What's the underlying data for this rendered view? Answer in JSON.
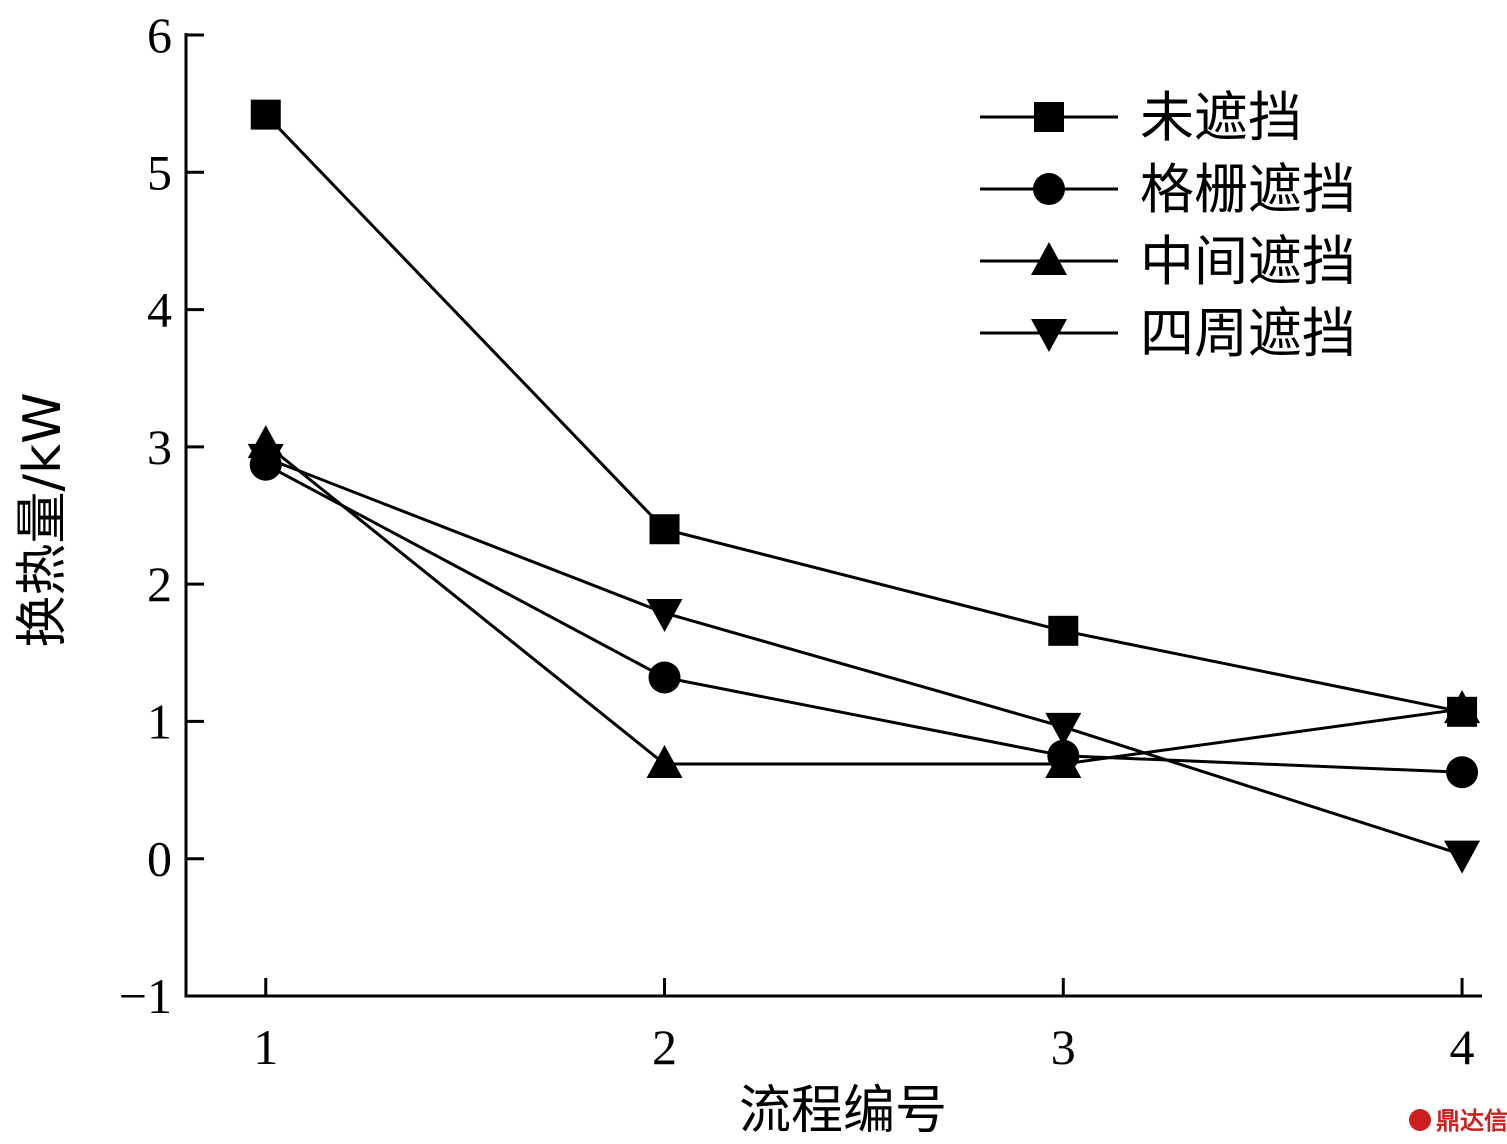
{
  "chart_data": {
    "type": "line",
    "title": "",
    "xlabel": "流程编号",
    "ylabel": "换热量/kW",
    "x": [
      1,
      2,
      3,
      4
    ],
    "xlim": [
      0.8,
      4.05
    ],
    "ylim": [
      -1,
      6
    ],
    "yticks": [
      -1,
      0,
      1,
      2,
      3,
      4,
      5,
      6
    ],
    "xticks": [
      1,
      2,
      3,
      4
    ],
    "grid": false,
    "legend_position": "top-right",
    "series": [
      {
        "name": "未遮挡",
        "marker": "square",
        "values": [
          5.42,
          2.4,
          1.66,
          1.07
        ]
      },
      {
        "name": "格栅遮挡",
        "marker": "circle",
        "values": [
          2.87,
          1.32,
          0.75,
          0.63
        ]
      },
      {
        "name": "中间遮挡",
        "marker": "triangle-up",
        "values": [
          3.02,
          0.69,
          0.69,
          1.09
        ]
      },
      {
        "name": "四周遮挡",
        "marker": "triangle-down",
        "values": [
          2.92,
          1.79,
          0.96,
          0.03
        ]
      }
    ]
  },
  "watermark": {
    "text": "鼎达信",
    "color": "#cc1f1f"
  }
}
